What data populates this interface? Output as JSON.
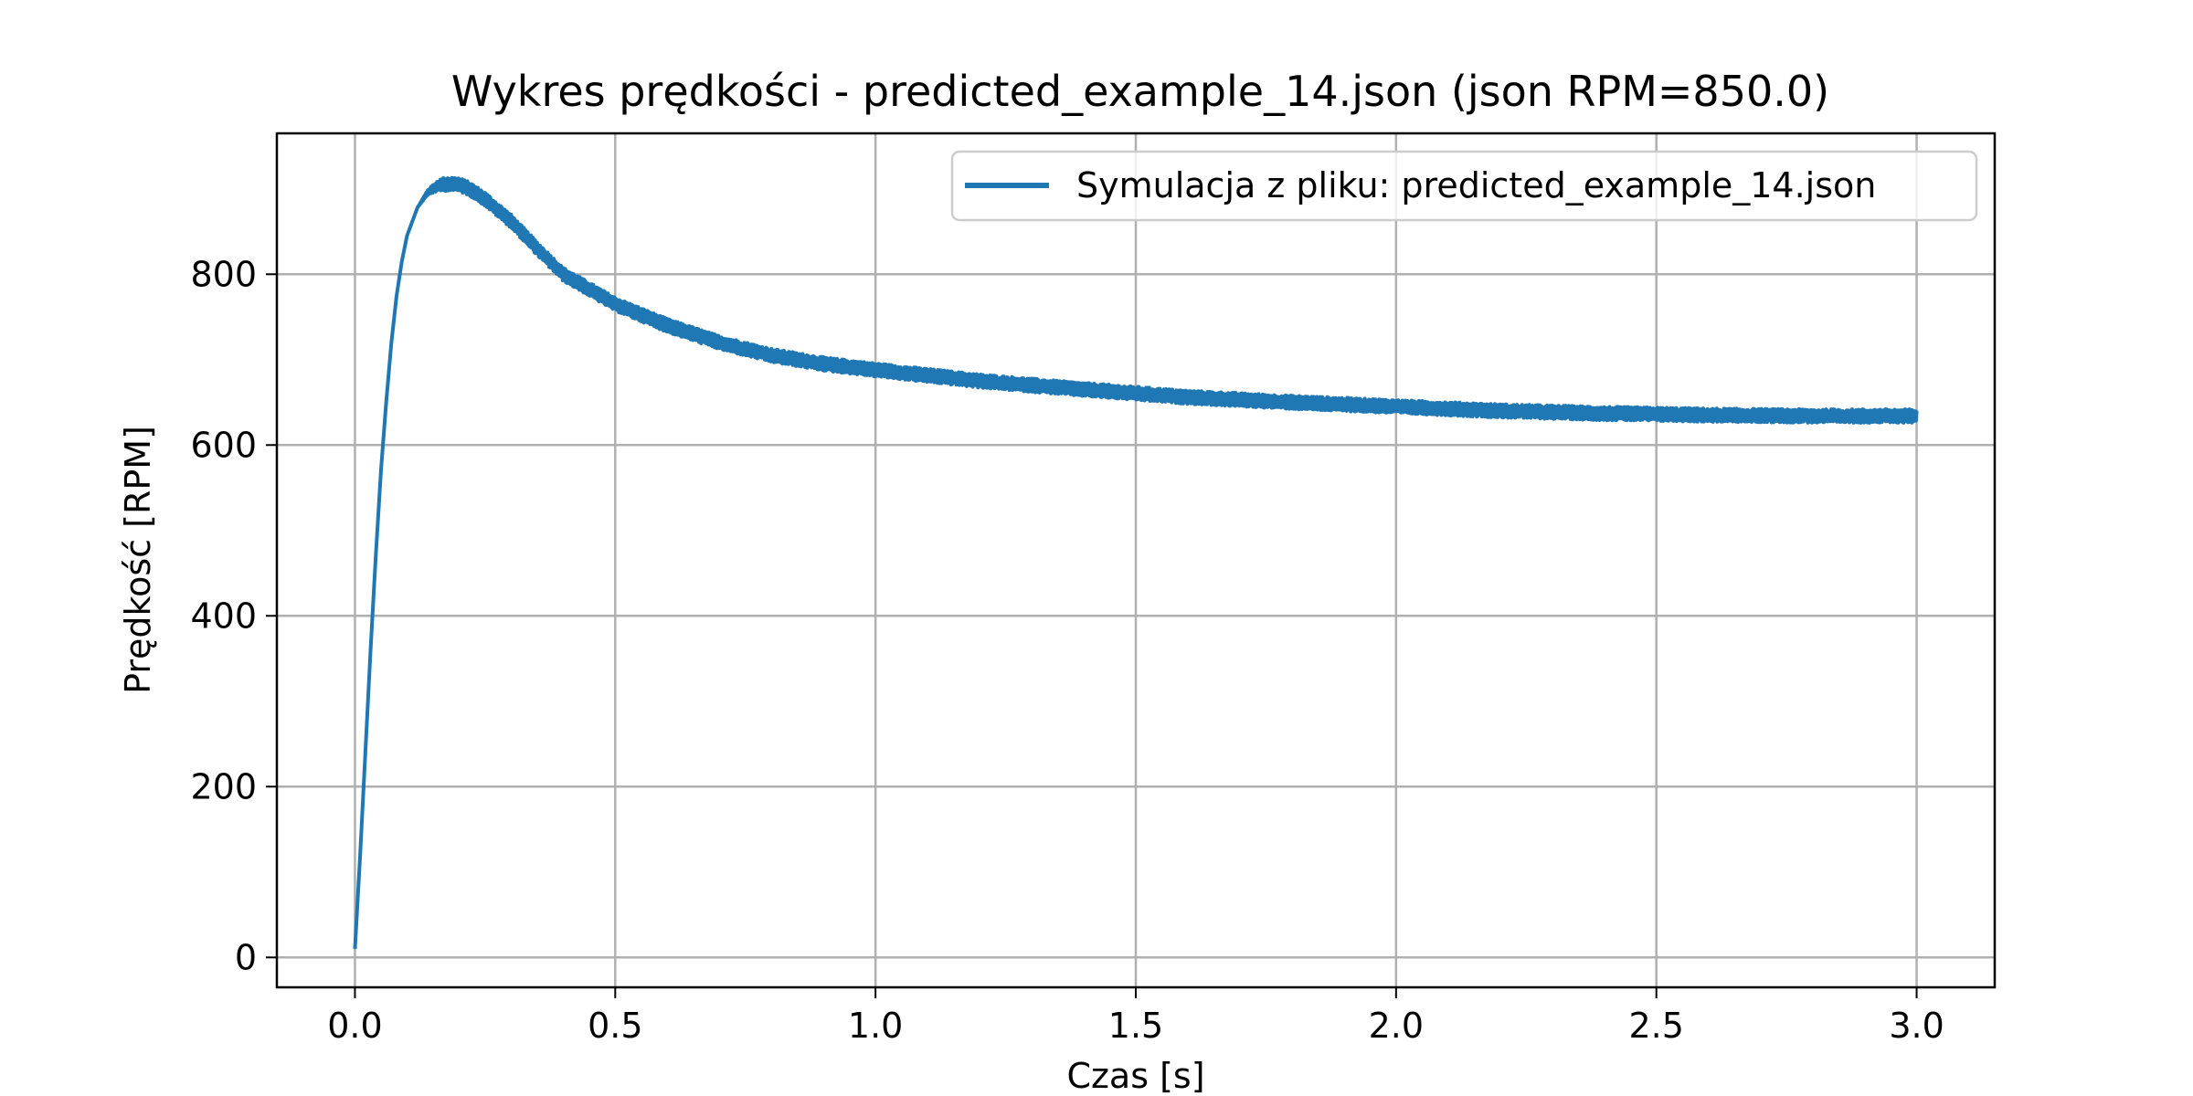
{
  "chart_data": {
    "type": "line",
    "title": "Wykres prędkości - predicted_example_14.json (json RPM=850.0)",
    "xlabel": "Czas [s]",
    "ylabel": "Prędkość [RPM]",
    "xlim": [
      -0.15,
      3.15
    ],
    "ylim": [
      -35,
      965
    ],
    "xticks": [
      0.0,
      0.5,
      1.0,
      1.5,
      2.0,
      2.5,
      3.0
    ],
    "xtick_labels": [
      "0.0",
      "0.5",
      "1.0",
      "1.5",
      "2.0",
      "2.5",
      "3.0"
    ],
    "yticks": [
      0,
      200,
      400,
      600,
      800
    ],
    "ytick_labels": [
      "0",
      "200",
      "400",
      "600",
      "800"
    ],
    "grid": true,
    "legend_position": "top-right",
    "series": [
      {
        "name": "Symulacja z pliku: predicted_example_14.json",
        "color": "#1f77b4",
        "noise_amplitude": 8,
        "x": [
          0.0,
          0.01,
          0.02,
          0.03,
          0.04,
          0.05,
          0.06,
          0.07,
          0.08,
          0.09,
          0.1,
          0.12,
          0.14,
          0.16,
          0.18,
          0.2,
          0.22,
          0.25,
          0.3,
          0.35,
          0.4,
          0.5,
          0.6,
          0.7,
          0.8,
          0.9,
          1.0,
          1.2,
          1.4,
          1.6,
          1.8,
          2.0,
          2.2,
          2.4,
          2.6,
          2.8,
          3.0
        ],
        "y": [
          10,
          120,
          240,
          360,
          470,
          570,
          650,
          720,
          775,
          815,
          845,
          878,
          896,
          904,
          906,
          905,
          900,
          888,
          862,
          830,
          800,
          765,
          740,
          720,
          705,
          695,
          688,
          675,
          665,
          656,
          650,
          645,
          640,
          637,
          635,
          634,
          634
        ]
      }
    ]
  }
}
